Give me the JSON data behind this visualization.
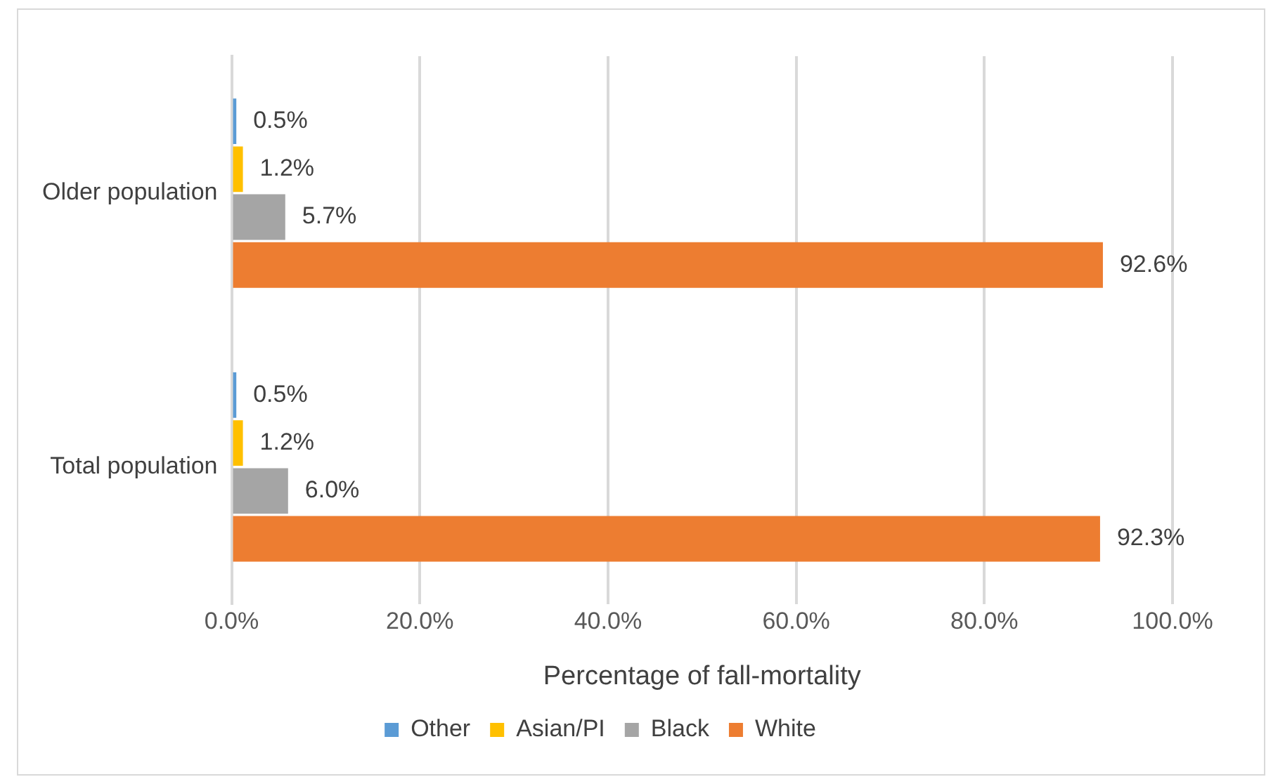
{
  "chart_data": {
    "type": "bar",
    "orientation": "horizontal",
    "xlabel": "Percentage of fall-mortality",
    "categories": [
      "Older population",
      "Total population"
    ],
    "series": [
      {
        "name": "Other",
        "color": "#5b9bd5",
        "values": [
          0.5,
          0.5
        ],
        "value_labels": [
          "0.5%",
          "0.5%"
        ]
      },
      {
        "name": "Asian/PI",
        "color": "#ffc000",
        "values": [
          1.2,
          1.2
        ],
        "value_labels": [
          "1.2%",
          "1.2%"
        ]
      },
      {
        "name": "Black",
        "color": "#a5a5a5",
        "values": [
          5.7,
          6.0
        ],
        "value_labels": [
          "5.7%",
          "6.0%"
        ]
      },
      {
        "name": "White",
        "color": "#ed7d31",
        "values": [
          92.6,
          92.3
        ],
        "value_labels": [
          "92.6%",
          "92.3%"
        ]
      }
    ],
    "xlim": [
      0,
      100
    ],
    "xticks": [
      {
        "value": 0,
        "label": "0.0%"
      },
      {
        "value": 20,
        "label": "20.0%"
      },
      {
        "value": 40,
        "label": "40.0%"
      },
      {
        "value": 60,
        "label": "60.0%"
      },
      {
        "value": 80,
        "label": "80.0%"
      },
      {
        "value": 100,
        "label": "100.0%"
      }
    ],
    "grid": "x",
    "legend": "bottom"
  }
}
